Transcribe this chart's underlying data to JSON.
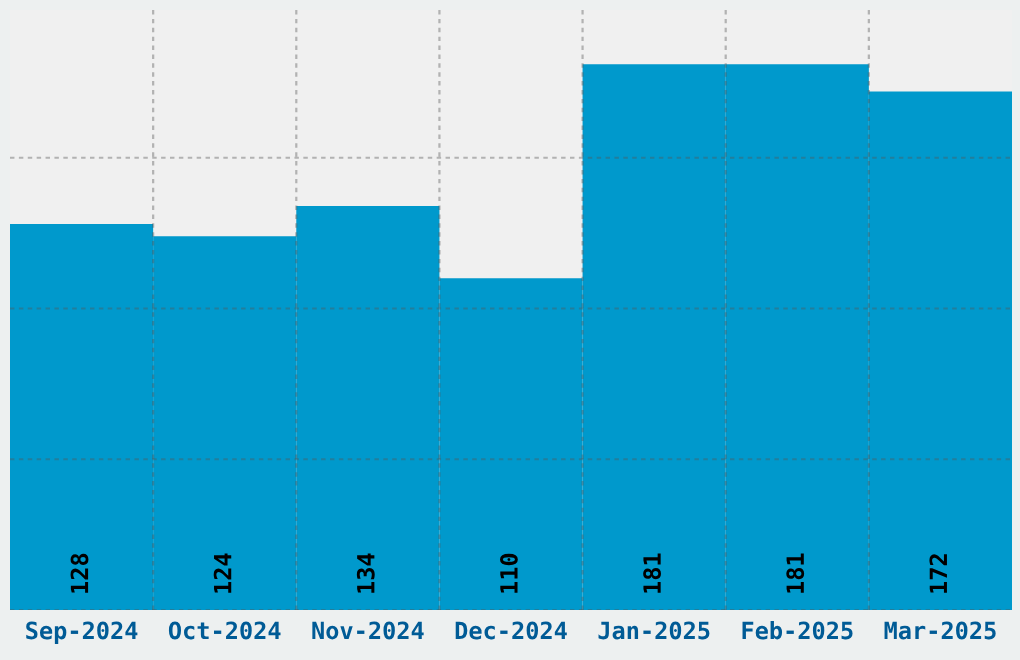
{
  "chart_data": {
    "type": "bar",
    "categories": [
      "Sep-2024",
      "Oct-2024",
      "Nov-2024",
      "Dec-2024",
      "Jan-2025",
      "Feb-2025",
      "Mar-2025"
    ],
    "values": [
      128,
      124,
      134,
      110,
      181,
      181,
      172
    ],
    "color": "#0099cc",
    "ylim": [
      0,
      199
    ],
    "yticks": [
      {
        "value": 0,
        "label": null
      },
      {
        "value": 50,
        "label": null
      },
      {
        "value": 100,
        "label": null
      },
      {
        "value": 150,
        "label": null
      }
    ],
    "tick_labels": "x",
    "grid": true,
    "data_labels": true
  }
}
